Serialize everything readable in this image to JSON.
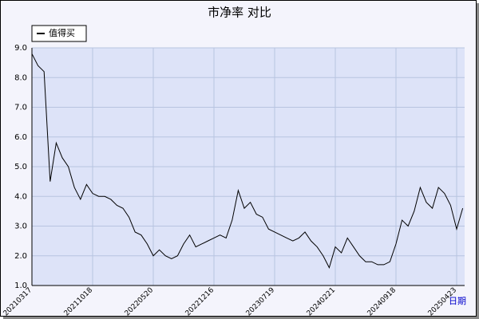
{
  "chart_data": {
    "type": "line",
    "title": "市净率  对比",
    "x_label": "日期",
    "categories": [
      "20210317",
      null,
      null,
      null,
      null,
      null,
      null,
      null,
      null,
      null,
      "20211018",
      null,
      null,
      null,
      null,
      null,
      null,
      null,
      null,
      null,
      "20220520",
      null,
      null,
      null,
      null,
      null,
      null,
      null,
      null,
      null,
      "20221216",
      null,
      null,
      null,
      null,
      null,
      null,
      null,
      null,
      null,
      "20230719",
      null,
      null,
      null,
      null,
      null,
      null,
      null,
      null,
      null,
      "20240221",
      null,
      null,
      null,
      null,
      null,
      null,
      null,
      null,
      null,
      "20240918",
      null,
      null,
      null,
      null,
      null,
      null,
      null,
      null,
      null,
      "20250423",
      null
    ],
    "series": [
      {
        "name": "值得买",
        "color": "#000000",
        "values": [
          8.8,
          8.4,
          8.2,
          4.5,
          5.8,
          5.3,
          5.0,
          4.3,
          3.9,
          4.4,
          4.1,
          4.0,
          4.0,
          3.9,
          3.7,
          3.6,
          3.3,
          2.8,
          2.7,
          2.4,
          2.0,
          2.2,
          2.0,
          1.9,
          2.0,
          2.4,
          2.7,
          2.3,
          2.4,
          2.5,
          2.6,
          2.7,
          2.6,
          3.2,
          4.2,
          3.6,
          3.8,
          3.4,
          3.3,
          2.9,
          2.8,
          2.7,
          2.6,
          2.5,
          2.6,
          2.8,
          2.5,
          2.3,
          2.0,
          1.6,
          2.3,
          2.1,
          2.6,
          2.3,
          2.0,
          1.8,
          1.8,
          1.7,
          1.7,
          1.8,
          2.4,
          3.2,
          3.0,
          3.5,
          4.3,
          3.8,
          3.6,
          4.3,
          4.1,
          3.7,
          2.9,
          3.6
        ]
      }
    ],
    "ylim": [
      1,
      9
    ],
    "yticks": [
      {
        "value": 1,
        "label": "1.0"
      },
      {
        "value": 2,
        "label": "2.0"
      },
      {
        "value": 3,
        "label": "3.0"
      },
      {
        "value": 4,
        "label": "4.0"
      },
      {
        "value": 5,
        "label": "5.0"
      },
      {
        "value": 6,
        "label": "6.0"
      },
      {
        "value": 7,
        "label": "7.0"
      },
      {
        "value": 8,
        "label": "8.0"
      },
      {
        "value": 9,
        "label": "9.0"
      }
    ],
    "grid": true
  }
}
